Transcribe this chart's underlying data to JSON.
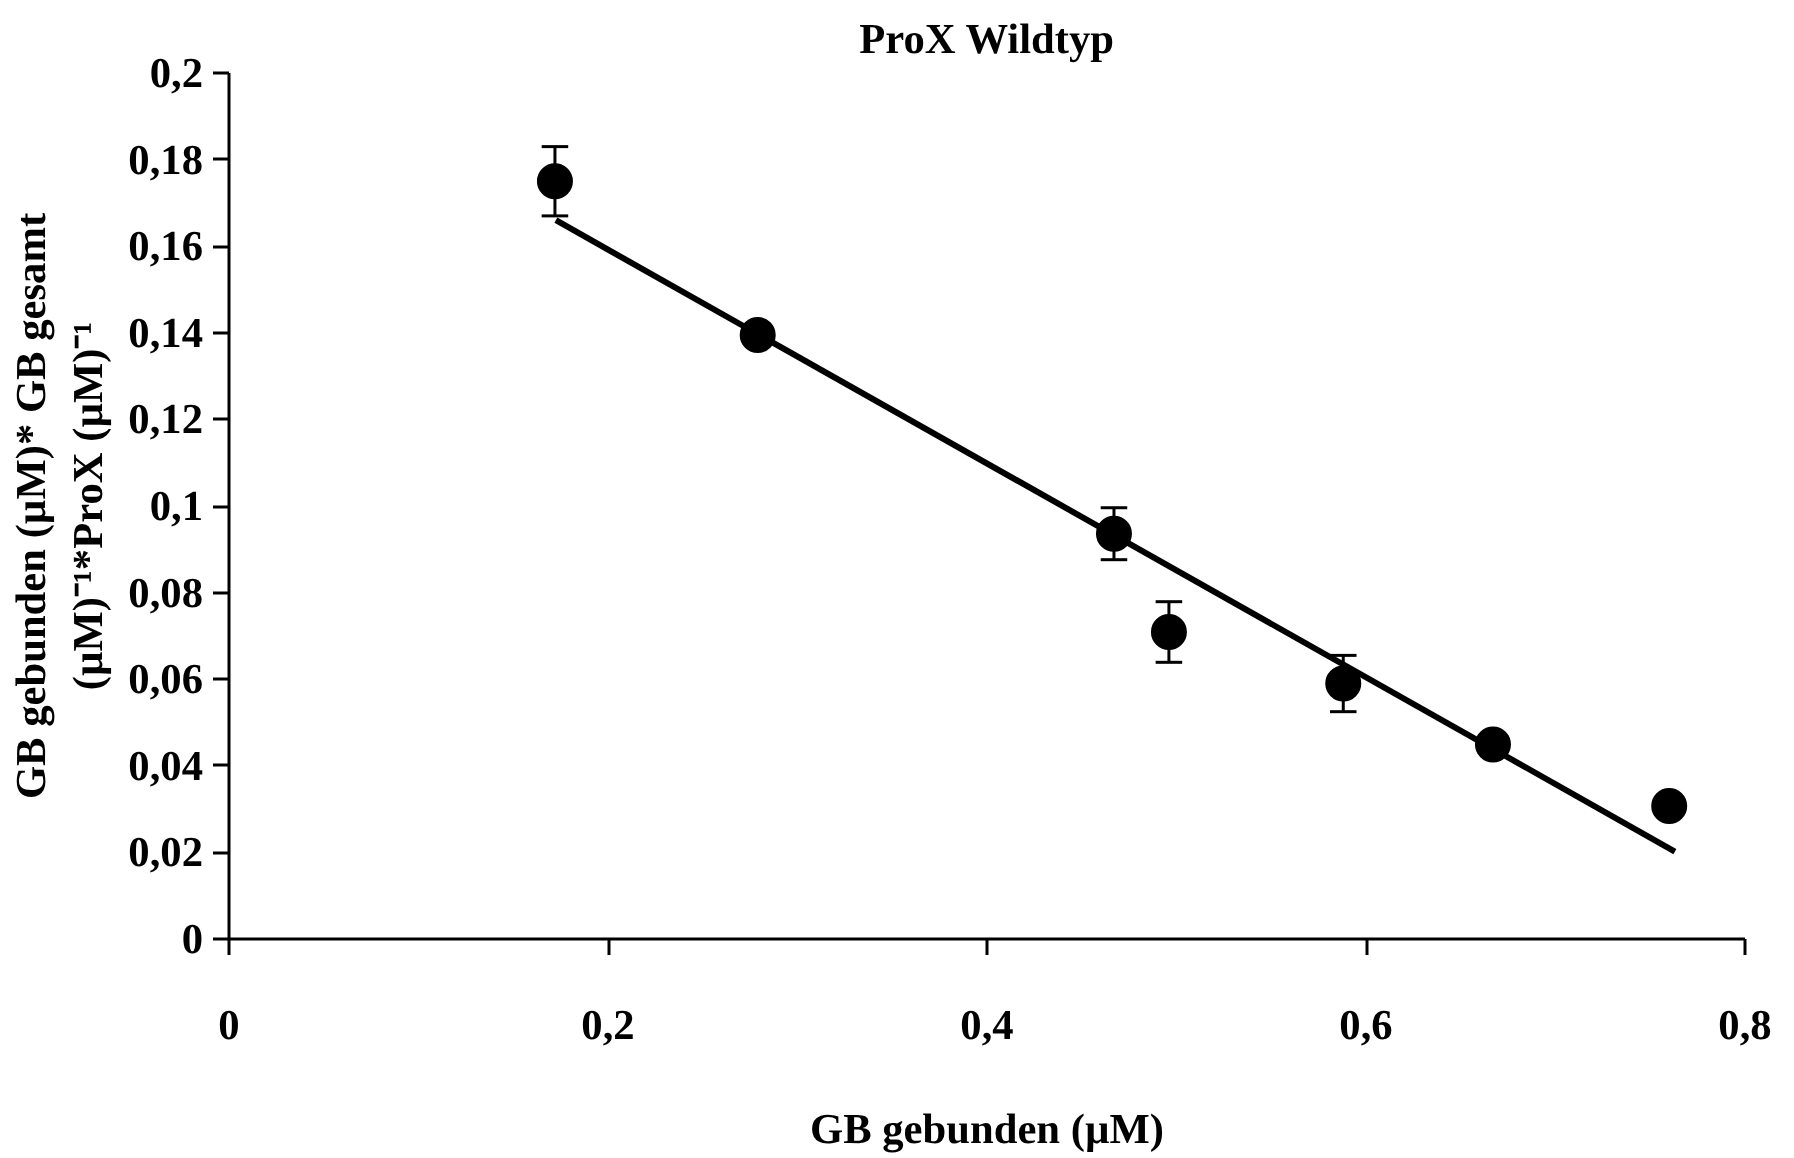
{
  "chart_data": {
    "type": "scatter",
    "title": "ProX Wildtyp",
    "xlabel": "GB gebunden (µM)",
    "ylabel": "GB gebunden (µM)* GB gesamt\n(µM)⁻¹*ProX (µM)⁻¹",
    "x": [
      0.172,
      0.279,
      0.467,
      0.496,
      0.588,
      0.667,
      0.76
    ],
    "series": [
      {
        "color": "#000000",
        "marker": "circle",
        "values": [
          0.175,
          0.1395,
          0.0936,
          0.0709,
          0.059,
          0.0449,
          0.0307
        ],
        "errors": [
          0.008,
          null,
          0.006,
          0.007,
          0.0065,
          null,
          null
        ]
      },
      {
        "type": "line",
        "color": "#000000",
        "marker": "none",
        "line_style": "solid",
        "x": [
          0.1725,
          0.763
        ],
        "values": [
          0.166,
          0.0202
        ]
      }
    ],
    "xlim": [
      0,
      0.8
    ],
    "ylim": [
      0,
      0.2
    ],
    "xticks": [
      0,
      {
        "value": 0.2,
        "label": "0,2"
      },
      {
        "value": 0.4,
        "label": "0,4"
      },
      {
        "value": 0.6,
        "label": "0,6"
      },
      {
        "value": 0.8,
        "label": "0,8"
      }
    ],
    "yticks": [
      0,
      {
        "value": 0.02,
        "label": "0,02"
      },
      {
        "value": 0.04,
        "label": "0,04"
      },
      {
        "value": 0.06,
        "label": "0,06"
      },
      {
        "value": 0.08,
        "label": "0,08"
      },
      {
        "value": 0.1,
        "label": "0,1"
      },
      {
        "value": 0.12,
        "label": "0,12"
      },
      {
        "value": 0.14,
        "label": "0,14"
      },
      {
        "value": 0.16,
        "label": "0,16"
      },
      {
        "value": 0.18,
        "label": "0,18"
      },
      {
        "value": 0.2,
        "label": "0,2"
      }
    ],
    "grid": false
  }
}
